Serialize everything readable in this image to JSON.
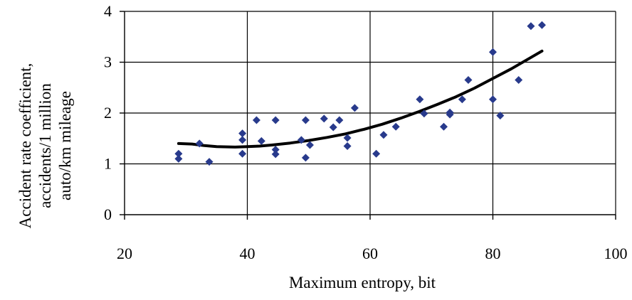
{
  "chart_data": {
    "type": "scatter",
    "title": "",
    "xlabel": "Maximum entropy, bit",
    "ylabel_lines": [
      "Accident rate coefficient,",
      "accidents/1 million",
      "auto/km  mileage"
    ],
    "xlim": [
      20,
      100
    ],
    "ylim": [
      0,
      4
    ],
    "x_ticks": [
      "20",
      "40",
      "60",
      "80",
      "100"
    ],
    "y_ticks": [
      "0",
      "1",
      "2",
      "3",
      "4"
    ],
    "grid": true,
    "legend": "none",
    "marker_color": "#283A8C",
    "trend_color": "#000000",
    "series": [
      {
        "type": "scatter",
        "points": [
          [
            28.8,
            1.1
          ],
          [
            28.8,
            1.2
          ],
          [
            32.2,
            1.4
          ],
          [
            33.8,
            1.04
          ],
          [
            39.2,
            1.2
          ],
          [
            39.2,
            1.47
          ],
          [
            39.2,
            1.6
          ],
          [
            41.5,
            1.86
          ],
          [
            42.3,
            1.45
          ],
          [
            44.6,
            1.19
          ],
          [
            44.6,
            1.28
          ],
          [
            44.6,
            1.86
          ],
          [
            48.8,
            1.47
          ],
          [
            49.5,
            1.12
          ],
          [
            49.5,
            1.86
          ],
          [
            50.2,
            1.37
          ],
          [
            52.5,
            1.89
          ],
          [
            54.0,
            1.72
          ],
          [
            55.0,
            1.86
          ],
          [
            56.3,
            1.35
          ],
          [
            56.3,
            1.51
          ],
          [
            57.5,
            2.1
          ],
          [
            61.0,
            1.2
          ],
          [
            62.2,
            1.57
          ],
          [
            64.2,
            1.73
          ],
          [
            68.1,
            2.27
          ],
          [
            68.8,
            1.99
          ],
          [
            72.0,
            1.73
          ],
          [
            73.0,
            1.97
          ],
          [
            73.0,
            2.01
          ],
          [
            75.0,
            2.27
          ],
          [
            76.0,
            2.65
          ],
          [
            80.0,
            2.27
          ],
          [
            80.0,
            3.2
          ],
          [
            81.2,
            1.95
          ],
          [
            84.2,
            2.65
          ],
          [
            86.2,
            3.71
          ],
          [
            88.0,
            3.73
          ]
        ]
      },
      {
        "type": "line",
        "points": [
          [
            28.8,
            1.4
          ],
          [
            31.0,
            1.39
          ],
          [
            33.0,
            1.36
          ],
          [
            35.0,
            1.34
          ],
          [
            38.0,
            1.33
          ],
          [
            40.0,
            1.34
          ],
          [
            42.0,
            1.35
          ],
          [
            44.0,
            1.37
          ],
          [
            47.0,
            1.41
          ],
          [
            50.0,
            1.46
          ],
          [
            53.0,
            1.52
          ],
          [
            56.0,
            1.59
          ],
          [
            59.0,
            1.68
          ],
          [
            62.0,
            1.78
          ],
          [
            65.0,
            1.9
          ],
          [
            68.0,
            2.03
          ],
          [
            71.0,
            2.17
          ],
          [
            74.0,
            2.32
          ],
          [
            77.0,
            2.49
          ],
          [
            80.0,
            2.68
          ],
          [
            83.0,
            2.87
          ],
          [
            86.0,
            3.08
          ],
          [
            88.0,
            3.22
          ]
        ]
      }
    ]
  }
}
